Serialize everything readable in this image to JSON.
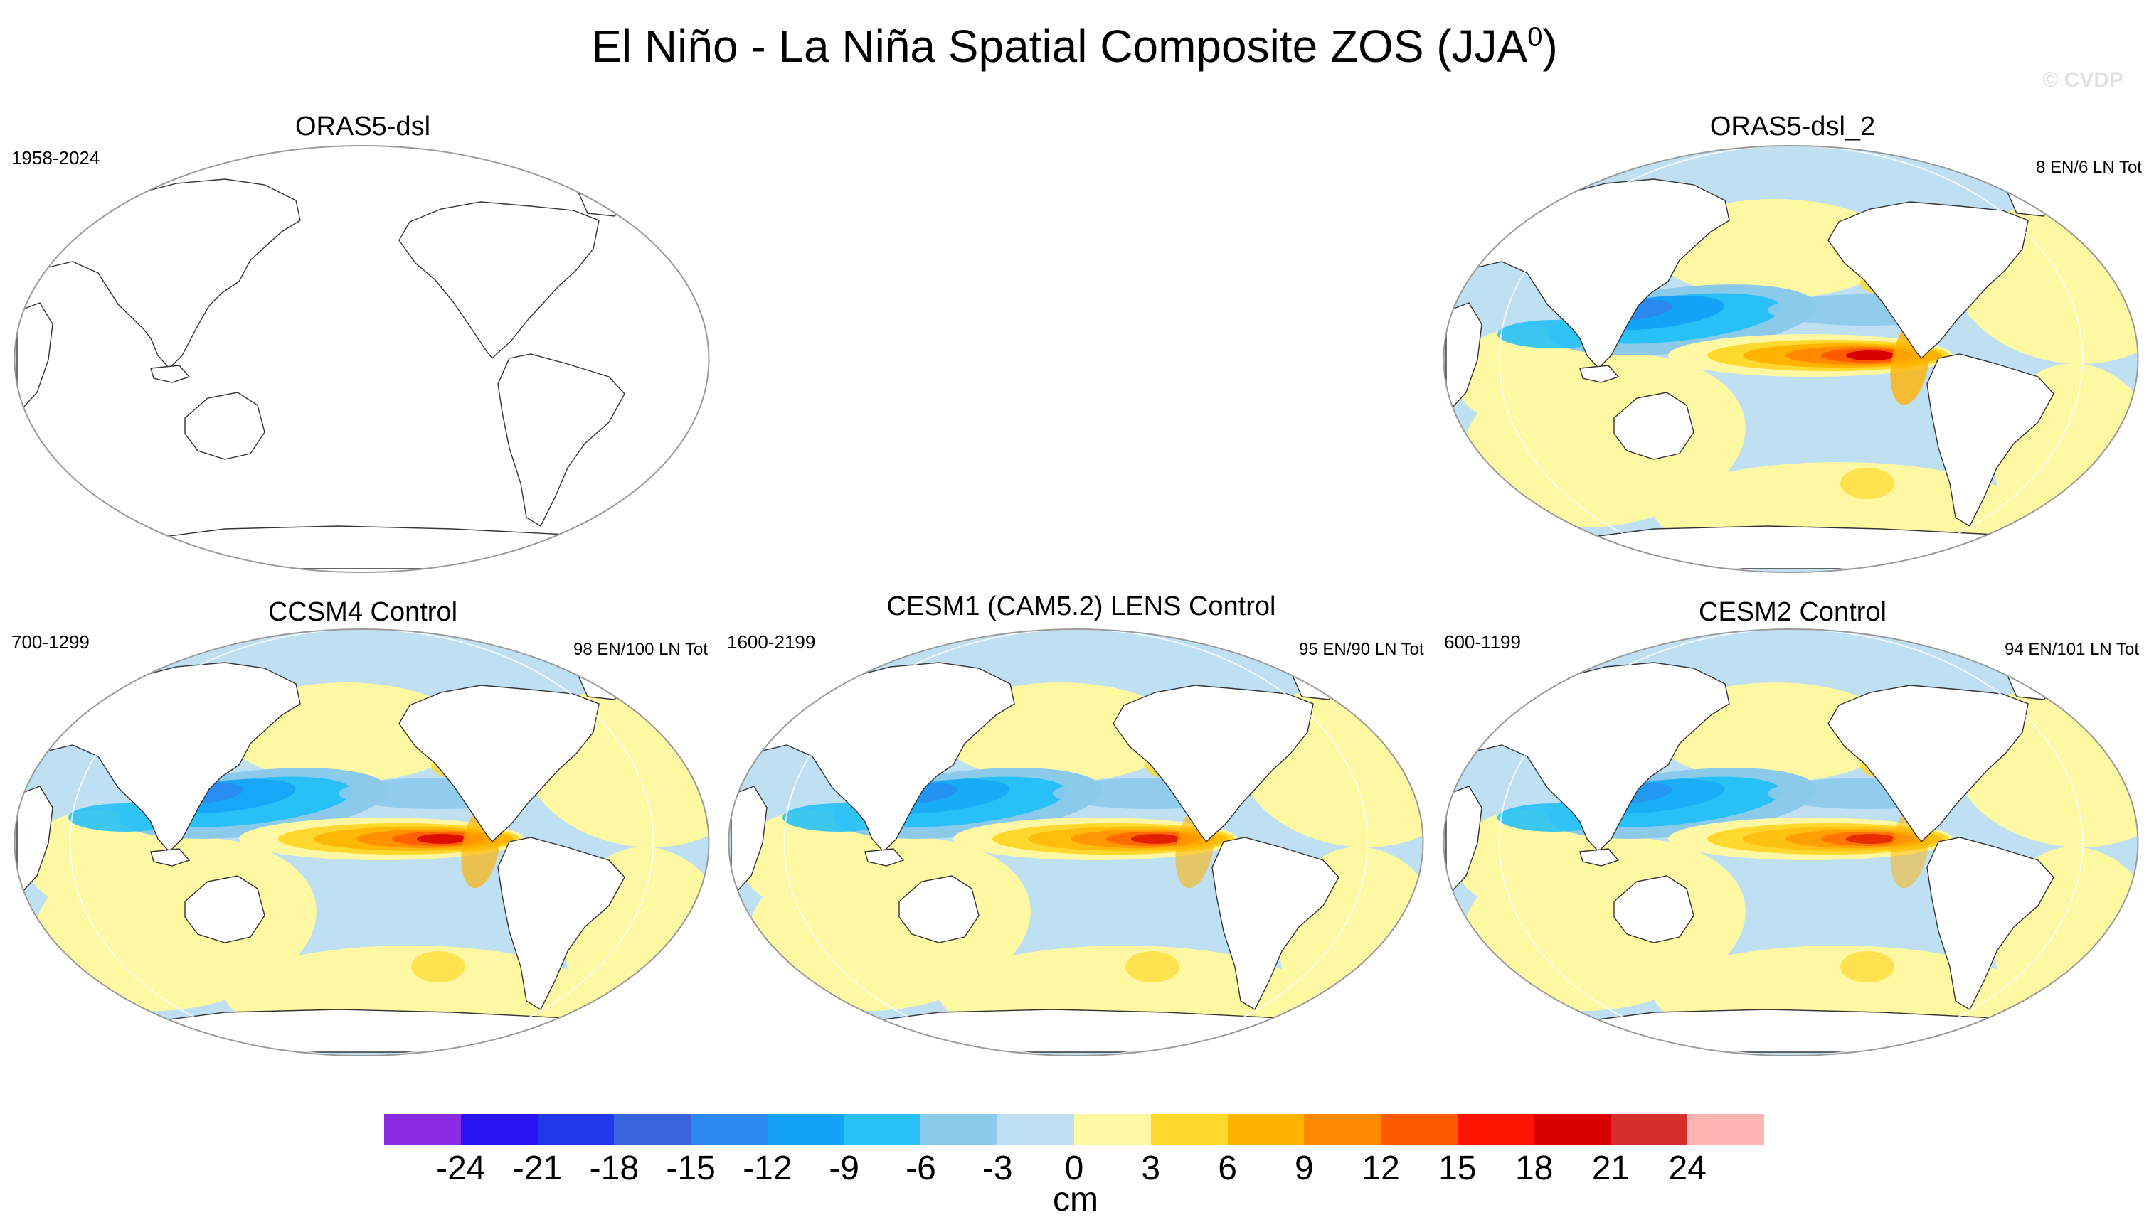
{
  "figure": {
    "title": "El Niño - La Niña Spatial Composite ZOS (JJA",
    "title_superscript": "0",
    "title_suffix": ")",
    "watermark": "© CVDP"
  },
  "panels": [
    {
      "id": "orasdsl",
      "title": "ORAS5-dsl",
      "years": "1958-2024",
      "counts": "",
      "empty": true,
      "intensity": 0
    },
    {
      "id": "oras2",
      "title": "ORAS5-dsl_2",
      "years": "",
      "counts": "8 EN/6 LN Tot",
      "empty": false,
      "intensity": 1.0
    },
    {
      "id": "ccsm4",
      "title": "CCSM4 Control",
      "years": "700-1299",
      "counts": "98 EN/100 LN Tot",
      "empty": false,
      "intensity": 0.85
    },
    {
      "id": "cesm1",
      "title": "CESM1 (CAM5.2) LENS Control",
      "years": "1600-2199",
      "counts": "95 EN/90 LN Tot",
      "empty": false,
      "intensity": 0.72
    },
    {
      "id": "cesm2",
      "title": "CESM2 Control",
      "years": "600-1199",
      "counts": "94 EN/101 LN Tot",
      "empty": false,
      "intensity": 0.62
    }
  ],
  "colorbar": {
    "colors": [
      "#8a2be2",
      "#2a14f2",
      "#2039e6",
      "#3a64dc",
      "#2a88ef",
      "#14a3f7",
      "#27c1f7",
      "#8ccaeb",
      "#bee0f2",
      "#fff8a2",
      "#ffd82d",
      "#ffb200",
      "#ff8a00",
      "#ff5a00",
      "#ff1400",
      "#d80000",
      "#d42f2f",
      "#ffb4b4"
    ],
    "ticks": [
      "-24",
      "-21",
      "-18",
      "-15",
      "-12",
      "-9",
      "-6",
      "-3",
      "0",
      "3",
      "6",
      "9",
      "12",
      "15",
      "18",
      "21",
      "24"
    ],
    "units": "cm"
  },
  "icons": {
    "land": "continent-outline",
    "globe": "robinson-projection"
  }
}
